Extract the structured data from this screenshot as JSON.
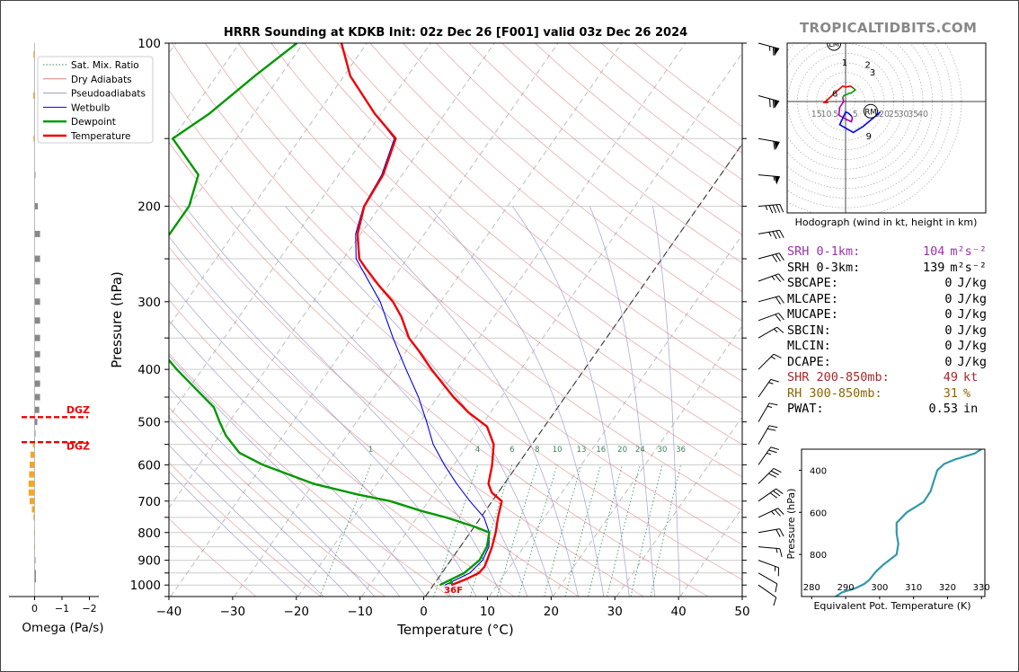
{
  "brand": "TROPICALTIDBITS.COM",
  "chart_data": {
    "type": "skew-t sounding",
    "title": "HRRR Sounding at KDKB Init: 02z Dec 26 [F001] valid 03z Dec 26 2024",
    "xlabel": "Temperature (°C)",
    "ylabel": "Pressure (hPa)",
    "x_ticks": [
      -40,
      -30,
      -20,
      -10,
      0,
      10,
      20,
      30,
      40,
      50
    ],
    "x_tick_labels": [
      "−40",
      "−30",
      "−20",
      "−10",
      "0",
      "10",
      "20",
      "30",
      "40",
      "50"
    ],
    "y_ticks": [
      100,
      200,
      300,
      400,
      500,
      600,
      700,
      800,
      900,
      1000
    ],
    "xlim": [
      -40,
      50
    ],
    "ylim": [
      1050,
      100
    ],
    "legend_position": "top-left",
    "legend": [
      {
        "name": "Sat. Mix. Ratio",
        "color": "#2e8b57",
        "style": "dotted"
      },
      {
        "name": "Dry Adiabats",
        "color": "#e08080",
        "style": "solid"
      },
      {
        "name": "Pseudoadiabats",
        "color": "#9999cc",
        "style": "solid"
      },
      {
        "name": "Wetbulb",
        "color": "#0000ee",
        "style": "solid"
      },
      {
        "name": "Dewpoint",
        "color": "#009900",
        "style": "solid"
      },
      {
        "name": "Temperature",
        "color": "#ee0000",
        "style": "solid"
      }
    ],
    "mixing_ratio_labels": [
      "1",
      "4",
      "6",
      "8",
      "10",
      "13",
      "16",
      "20",
      "24",
      "30",
      "36"
    ],
    "mixing_ratio_values": [
      1,
      4,
      6,
      8,
      10,
      13,
      16,
      20,
      24,
      30,
      36
    ],
    "surface_temp_label": "36F",
    "temperature": [
      {
        "p": 1000,
        "t": 2.8
      },
      {
        "p": 975,
        "t": 4.5
      },
      {
        "p": 950,
        "t": 5.8
      },
      {
        "p": 925,
        "t": 6.0
      },
      {
        "p": 900,
        "t": 5.7
      },
      {
        "p": 850,
        "t": 5.0
      },
      {
        "p": 800,
        "t": 4.0
      },
      {
        "p": 750,
        "t": 2.7
      },
      {
        "p": 700,
        "t": 1.5
      },
      {
        "p": 675,
        "t": -1.0
      },
      {
        "p": 650,
        "t": -2.5
      },
      {
        "p": 600,
        "t": -4.0
      },
      {
        "p": 550,
        "t": -6.0
      },
      {
        "p": 510,
        "t": -9.0
      },
      {
        "p": 480,
        "t": -13.5
      },
      {
        "p": 450,
        "t": -17.5
      },
      {
        "p": 400,
        "t": -24.0
      },
      {
        "p": 370,
        "t": -28.0
      },
      {
        "p": 350,
        "t": -31.0
      },
      {
        "p": 320,
        "t": -34.5
      },
      {
        "p": 300,
        "t": -37.5
      },
      {
        "p": 280,
        "t": -41.5
      },
      {
        "p": 260,
        "t": -45.5
      },
      {
        "p": 250,
        "t": -47.5
      },
      {
        "p": 225,
        "t": -50.5
      },
      {
        "p": 200,
        "t": -52.5
      },
      {
        "p": 175,
        "t": -53.0
      },
      {
        "p": 150,
        "t": -55.0
      },
      {
        "p": 135,
        "t": -61.0
      },
      {
        "p": 115,
        "t": -69.0
      },
      {
        "p": 100,
        "t": -74.0
      }
    ],
    "dewpoint": [
      {
        "p": 1000,
        "t": 1.0
      },
      {
        "p": 950,
        "t": 3.5
      },
      {
        "p": 900,
        "t": 4.5
      },
      {
        "p": 850,
        "t": 4.2
      },
      {
        "p": 800,
        "t": 3.0
      },
      {
        "p": 780,
        "t": 0.0
      },
      {
        "p": 750,
        "t": -5.5
      },
      {
        "p": 730,
        "t": -10.0
      },
      {
        "p": 700,
        "t": -16.0
      },
      {
        "p": 680,
        "t": -22.0
      },
      {
        "p": 650,
        "t": -30.0
      },
      {
        "p": 600,
        "t": -40.0
      },
      {
        "p": 570,
        "t": -45.0
      },
      {
        "p": 530,
        "t": -49.0
      },
      {
        "p": 500,
        "t": -51.5
      },
      {
        "p": 470,
        "t": -54.0
      },
      {
        "p": 400,
        "t": -64.0
      },
      {
        "p": 360,
        "t": -70.0
      },
      {
        "p": 330,
        "t": -76.0
      },
      {
        "p": 300,
        "t": -78.0
      },
      {
        "p": 270,
        "t": -79.0
      },
      {
        "p": 240,
        "t": -80.0
      },
      {
        "p": 200,
        "t": -80.0
      },
      {
        "p": 175,
        "t": -82.0
      },
      {
        "p": 150,
        "t": -90.0
      },
      {
        "p": 135,
        "t": -87.0
      },
      {
        "p": 115,
        "t": -84.0
      },
      {
        "p": 100,
        "t": -81.0
      }
    ],
    "wetbulb": [
      {
        "p": 1000,
        "t": 1.8
      },
      {
        "p": 950,
        "t": 4.4
      },
      {
        "p": 900,
        "t": 5.0
      },
      {
        "p": 850,
        "t": 4.5
      },
      {
        "p": 800,
        "t": 3.0
      },
      {
        "p": 750,
        "t": 0.5
      },
      {
        "p": 700,
        "t": -3.5
      },
      {
        "p": 650,
        "t": -7.5
      },
      {
        "p": 600,
        "t": -11.5
      },
      {
        "p": 550,
        "t": -15.5
      },
      {
        "p": 500,
        "t": -19.0
      },
      {
        "p": 450,
        "t": -23.0
      },
      {
        "p": 400,
        "t": -28.0
      },
      {
        "p": 350,
        "t": -33.5
      },
      {
        "p": 300,
        "t": -39.5
      },
      {
        "p": 250,
        "t": -48.0
      },
      {
        "p": 225,
        "t": -50.8
      },
      {
        "p": 200,
        "t": -52.6
      },
      {
        "p": 175,
        "t": -53.2
      },
      {
        "p": 150,
        "t": -55.2
      },
      {
        "p": 135,
        "t": -61.0
      },
      {
        "p": 115,
        "t": -69.0
      },
      {
        "p": 100,
        "t": -74.0
      }
    ],
    "omega": {
      "xlabel": "Omega (Pa/s)",
      "x_tick_labels": [
        "0",
        "−1",
        "−2"
      ],
      "dgz_label": "DGZ",
      "dgz_bounds_hpa": [
        490,
        545
      ],
      "levels": [
        {
          "p": 105,
          "w": 0.04,
          "c": "#f5a623"
        },
        {
          "p": 125,
          "w": 0.05,
          "c": "#f5a623"
        },
        {
          "p": 150,
          "w": 0.04,
          "c": "#f5a623"
        },
        {
          "p": 175,
          "w": -0.02,
          "c": "#888888"
        },
        {
          "p": 200,
          "w": -0.12,
          "c": "#888888"
        },
        {
          "p": 225,
          "w": -0.2,
          "c": "#888888"
        },
        {
          "p": 250,
          "w": -0.2,
          "c": "#888888"
        },
        {
          "p": 275,
          "w": -0.2,
          "c": "#888888"
        },
        {
          "p": 300,
          "w": -0.2,
          "c": "#888888"
        },
        {
          "p": 325,
          "w": -0.2,
          "c": "#888888"
        },
        {
          "p": 350,
          "w": -0.2,
          "c": "#888888"
        },
        {
          "p": 375,
          "w": -0.2,
          "c": "#888888"
        },
        {
          "p": 400,
          "w": -0.2,
          "c": "#888888"
        },
        {
          "p": 425,
          "w": -0.2,
          "c": "#888888"
        },
        {
          "p": 450,
          "w": -0.2,
          "c": "#888888"
        },
        {
          "p": 475,
          "w": -0.17,
          "c": "#888888"
        },
        {
          "p": 500,
          "w": -0.1,
          "c": "#888888"
        },
        {
          "p": 525,
          "w": -0.02,
          "c": "#888888"
        },
        {
          "p": 550,
          "w": 0.06,
          "c": "#f5a623"
        },
        {
          "p": 575,
          "w": 0.15,
          "c": "#f5a623"
        },
        {
          "p": 600,
          "w": 0.18,
          "c": "#f5a623"
        },
        {
          "p": 625,
          "w": 0.2,
          "c": "#f5a623"
        },
        {
          "p": 650,
          "w": 0.22,
          "c": "#f5a623"
        },
        {
          "p": 675,
          "w": 0.22,
          "c": "#f5a623"
        },
        {
          "p": 700,
          "w": 0.18,
          "c": "#f5a623"
        },
        {
          "p": 725,
          "w": 0.1,
          "c": "#f5a623"
        },
        {
          "p": 750,
          "w": 0.04,
          "c": "#f5a623"
        },
        {
          "p": 800,
          "w": 0.02,
          "c": "#f5a623"
        },
        {
          "p": 850,
          "w": 0.02,
          "c": "#f5a623"
        },
        {
          "p": 900,
          "w": -0.02,
          "c": "#888888"
        },
        {
          "p": 950,
          "w": -0.05,
          "c": "#888888"
        },
        {
          "p": 975,
          "w": -0.05,
          "c": "#888888"
        }
      ]
    },
    "wind_barbs": [
      {
        "p": 100,
        "dir": 285,
        "kt": 65
      },
      {
        "p": 125,
        "dir": 285,
        "kt": 70
      },
      {
        "p": 150,
        "dir": 280,
        "kt": 60
      },
      {
        "p": 175,
        "dir": 275,
        "kt": 55
      },
      {
        "p": 200,
        "dir": 265,
        "kt": 45
      },
      {
        "p": 225,
        "dir": 260,
        "kt": 35
      },
      {
        "p": 250,
        "dir": 255,
        "kt": 30
      },
      {
        "p": 275,
        "dir": 250,
        "kt": 25
      },
      {
        "p": 300,
        "dir": 255,
        "kt": 20
      },
      {
        "p": 325,
        "dir": 250,
        "kt": 20
      },
      {
        "p": 350,
        "dir": 240,
        "kt": 15
      },
      {
        "p": 400,
        "dir": 225,
        "kt": 15
      },
      {
        "p": 450,
        "dir": 215,
        "kt": 15
      },
      {
        "p": 500,
        "dir": 210,
        "kt": 15
      },
      {
        "p": 550,
        "dir": 210,
        "kt": 20
      },
      {
        "p": 600,
        "dir": 215,
        "kt": 25
      },
      {
        "p": 650,
        "dir": 225,
        "kt": 30
      },
      {
        "p": 700,
        "dir": 235,
        "kt": 30
      },
      {
        "p": 750,
        "dir": 245,
        "kt": 25
      },
      {
        "p": 800,
        "dir": 260,
        "kt": 20
      },
      {
        "p": 850,
        "dir": 275,
        "kt": 15
      },
      {
        "p": 900,
        "dir": 290,
        "kt": 15
      },
      {
        "p": 950,
        "dir": 300,
        "kt": 10
      },
      {
        "p": 1000,
        "dir": 305,
        "kt": 10
      }
    ],
    "hodograph": {
      "title": "Hodograph (wind in kt, height in km)",
      "ring_labels": [
        "15",
        "10",
        "5",
        "5",
        "15",
        "20",
        "25",
        "30",
        "35",
        "40"
      ],
      "height_labels": [
        "1",
        "2",
        "3",
        "6",
        "9"
      ],
      "markers": [
        "LM",
        "RM"
      ],
      "segments": [
        {
          "color": "#ee0000",
          "points": [
            [
              -9,
              -0.5
            ],
            [
              -11,
              -0.5
            ],
            [
              -6,
              4
            ],
            [
              -1.5,
              8
            ],
            [
              0,
              7.5
            ],
            [
              2.5,
              8
            ],
            [
              4,
              7
            ]
          ]
        },
        {
          "color": "#009900",
          "points": [
            [
              4,
              7
            ],
            [
              5,
              6
            ],
            [
              3,
              4.5
            ],
            [
              1.5,
              4
            ],
            [
              -1,
              3
            ],
            [
              -1.5,
              2
            ]
          ]
        },
        {
          "color": "#aa00aa",
          "points": [
            [
              -1.5,
              2
            ],
            [
              -1,
              0
            ],
            [
              -3,
              -3
            ],
            [
              -3.5,
              -7
            ],
            [
              -1,
              -8.5
            ],
            [
              3,
              -10.5
            ],
            [
              3.5,
              -8.5
            ],
            [
              3,
              -7.5
            ]
          ]
        },
        {
          "color": "#0000ee",
          "points": [
            [
              3,
              -7.5
            ],
            [
              1.5,
              -6
            ],
            [
              0,
              -5.5
            ],
            [
              -3,
              -12
            ],
            [
              4,
              -16
            ],
            [
              9,
              -13
            ],
            [
              18,
              -5.5
            ]
          ]
        }
      ]
    },
    "theta_e": {
      "xlabel": "Equivalent Pot. Temperature (K)",
      "ylabel": "Pressure (hPa)",
      "x_ticks": [
        280,
        290,
        300,
        310,
        320,
        330
      ],
      "y_ticks": [
        400,
        600,
        800
      ],
      "xlim": [
        277,
        331
      ],
      "ylim": [
        1000,
        300
      ],
      "points": [
        {
          "p": 1000,
          "k": 287
        },
        {
          "p": 980,
          "k": 289
        },
        {
          "p": 960,
          "k": 293
        },
        {
          "p": 940,
          "k": 295.5
        },
        {
          "p": 920,
          "k": 297
        },
        {
          "p": 900,
          "k": 298
        },
        {
          "p": 880,
          "k": 299
        },
        {
          "p": 850,
          "k": 301
        },
        {
          "p": 800,
          "k": 305
        },
        {
          "p": 750,
          "k": 305.5
        },
        {
          "p": 700,
          "k": 305
        },
        {
          "p": 650,
          "k": 305
        },
        {
          "p": 600,
          "k": 308
        },
        {
          "p": 550,
          "k": 313
        },
        {
          "p": 500,
          "k": 315
        },
        {
          "p": 450,
          "k": 316
        },
        {
          "p": 400,
          "k": 317
        },
        {
          "p": 370,
          "k": 319
        },
        {
          "p": 350,
          "k": 322
        },
        {
          "p": 320,
          "k": 328
        },
        {
          "p": 300,
          "k": 330
        }
      ]
    }
  },
  "indices": [
    {
      "label": "SRH 0-1km:",
      "value": "104",
      "unit": "m²s⁻²",
      "color": "#9933aa"
    },
    {
      "label": "SRH 0-3km:",
      "value": "139",
      "unit": "m²s⁻²",
      "color": "#000000"
    },
    {
      "label": "SBCAPE:",
      "value": "0",
      "unit": "J/kg",
      "color": "#000000"
    },
    {
      "label": "MLCAPE:",
      "value": "0",
      "unit": "J/kg",
      "color": "#000000"
    },
    {
      "label": "MUCAPE:",
      "value": "0",
      "unit": "J/kg",
      "color": "#000000"
    },
    {
      "label": "SBCIN:",
      "value": "0",
      "unit": "J/kg",
      "color": "#000000"
    },
    {
      "label": "MLCIN:",
      "value": "0",
      "unit": "J/kg",
      "color": "#000000"
    },
    {
      "label": "DCAPE:",
      "value": "0",
      "unit": "J/kg",
      "color": "#000000"
    },
    {
      "label": "SHR 200-850mb:",
      "value": "49",
      "unit": "kt",
      "color": "#a52a2a"
    },
    {
      "label": "RH 300-850mb:",
      "value": "31",
      "unit": "%",
      "color": "#8b6508"
    },
    {
      "label": "PWAT:",
      "value": "0.53",
      "unit": "in",
      "color": "#000000"
    }
  ]
}
